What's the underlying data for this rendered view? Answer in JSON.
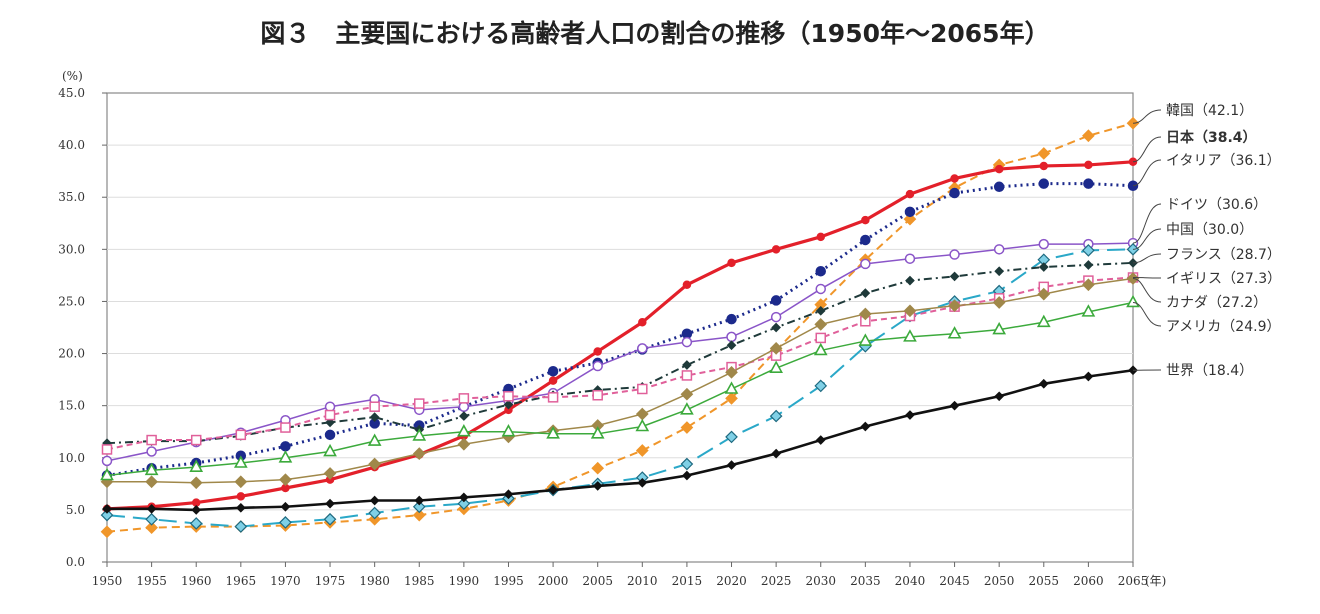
{
  "chart_data": {
    "type": "line",
    "title": "図３　主要国における高齢者人口の割合の推移（1950年～2065年）",
    "ylabel": "(%)",
    "xlabel": "(年)",
    "ylim": [
      0,
      45
    ],
    "yticks": [
      "0.0",
      "5.0",
      "10.0",
      "15.0",
      "20.0",
      "25.0",
      "30.0",
      "35.0",
      "40.0",
      "45.0"
    ],
    "grid": true,
    "legend": "right (end labels)",
    "x": [
      1950,
      1955,
      1960,
      1965,
      1970,
      1975,
      1980,
      1985,
      1990,
      1995,
      2000,
      2005,
      2010,
      2015,
      2020,
      2025,
      2030,
      2035,
      2040,
      2045,
      2050,
      2055,
      2060,
      2065
    ],
    "series": [
      {
        "name": "韓国",
        "label": "韓国（42.1）",
        "color": "#f0962a",
        "marker": "diamond-filled",
        "dash": "8,5",
        "values": [
          2.9,
          3.3,
          3.4,
          3.4,
          3.5,
          3.8,
          4.1,
          4.5,
          5.1,
          5.9,
          7.2,
          9.0,
          10.7,
          12.9,
          15.7,
          20.3,
          24.7,
          29.0,
          32.9,
          35.9,
          38.1,
          39.2,
          40.9,
          42.1
        ]
      },
      {
        "name": "日本",
        "label": "日本（38.4）",
        "color": "#e3202a",
        "marker": "circle-filled-small",
        "dash": "",
        "values": [
          5.1,
          5.3,
          5.7,
          6.3,
          7.1,
          7.9,
          9.1,
          10.3,
          12.1,
          14.6,
          17.4,
          20.2,
          23.0,
          26.6,
          28.7,
          30.0,
          31.2,
          32.8,
          35.3,
          36.8,
          37.7,
          38.0,
          38.1,
          38.4
        ]
      },
      {
        "name": "イタリア",
        "label": "イタリア（36.1）",
        "color": "#1c2a8c",
        "marker": "circle-filled",
        "dash": "2,4",
        "values": [
          8.3,
          9.0,
          9.5,
          10.2,
          11.1,
          12.2,
          13.3,
          13.1,
          14.9,
          16.6,
          18.3,
          19.1,
          20.4,
          21.9,
          23.3,
          25.1,
          27.9,
          30.9,
          33.6,
          35.4,
          36.0,
          36.3,
          36.3,
          36.1
        ]
      },
      {
        "name": "ドイツ",
        "label": "ドイツ（30.6）",
        "color": "#8a55c8",
        "marker": "circle-open",
        "dash": "",
        "values": [
          9.7,
          10.6,
          11.5,
          12.4,
          13.6,
          14.9,
          15.6,
          14.6,
          14.9,
          15.5,
          16.2,
          18.8,
          20.5,
          21.1,
          21.6,
          23.5,
          26.2,
          28.6,
          29.1,
          29.5,
          30.0,
          30.5,
          30.5,
          30.6
        ]
      },
      {
        "name": "中国",
        "label": "中国（30.0）",
        "color": "#2aa8c8",
        "marker": "diamond-open",
        "dash": "18,8",
        "values": [
          4.5,
          4.1,
          3.7,
          3.4,
          3.8,
          4.1,
          4.7,
          5.3,
          5.6,
          6.1,
          6.9,
          7.5,
          8.1,
          9.4,
          12.0,
          14.0,
          16.9,
          20.7,
          23.6,
          25.0,
          26.0,
          29.0,
          29.9,
          30.0
        ]
      },
      {
        "name": "フランス",
        "label": "フランス（28.7）",
        "color": "#1f3a3a",
        "marker": "diamond-filled-small",
        "dash": "8,4,2,4",
        "values": [
          11.4,
          11.6,
          11.6,
          12.1,
          12.9,
          13.4,
          13.9,
          12.7,
          14.0,
          15.1,
          16.0,
          16.5,
          16.8,
          18.9,
          20.8,
          22.5,
          24.1,
          25.8,
          27.0,
          27.4,
          27.9,
          28.3,
          28.5,
          28.7
        ]
      },
      {
        "name": "イギリス",
        "label": "イギリス（27.3）",
        "color": "#e0609a",
        "marker": "square-open",
        "dash": "6,4",
        "values": [
          10.8,
          11.7,
          11.7,
          12.2,
          12.9,
          14.1,
          14.9,
          15.2,
          15.7,
          15.9,
          15.8,
          16.0,
          16.6,
          17.9,
          18.7,
          19.8,
          21.5,
          23.1,
          23.6,
          24.5,
          25.3,
          26.4,
          27.0,
          27.3
        ]
      },
      {
        "name": "カナダ",
        "label": "カナダ（27.2）",
        "color": "#a0884a",
        "marker": "diamond-filled",
        "dash": "",
        "values": [
          7.7,
          7.7,
          7.6,
          7.7,
          7.9,
          8.5,
          9.4,
          10.4,
          11.3,
          12.0,
          12.6,
          13.1,
          14.2,
          16.1,
          18.2,
          20.5,
          22.8,
          23.8,
          24.1,
          24.6,
          24.9,
          25.7,
          26.6,
          27.2
        ]
      },
      {
        "name": "アメリカ",
        "label": "アメリカ（24.9）",
        "color": "#3caa3c",
        "marker": "triangle-open",
        "dash": "",
        "values": [
          8.3,
          8.8,
          9.1,
          9.5,
          10.0,
          10.6,
          11.6,
          12.1,
          12.5,
          12.5,
          12.3,
          12.3,
          13.0,
          14.6,
          16.6,
          18.6,
          20.3,
          21.2,
          21.6,
          21.9,
          22.3,
          23.0,
          24.0,
          24.9
        ]
      },
      {
        "name": "世界",
        "label": "世界（18.4）",
        "color": "#111111",
        "marker": "diamond-filled-small",
        "dash": "",
        "values": [
          5.1,
          5.1,
          5.0,
          5.2,
          5.3,
          5.6,
          5.9,
          5.9,
          6.2,
          6.5,
          6.9,
          7.3,
          7.6,
          8.3,
          9.3,
          10.4,
          11.7,
          13.0,
          14.1,
          15.0,
          15.9,
          17.1,
          17.8,
          18.4
        ]
      }
    ]
  }
}
